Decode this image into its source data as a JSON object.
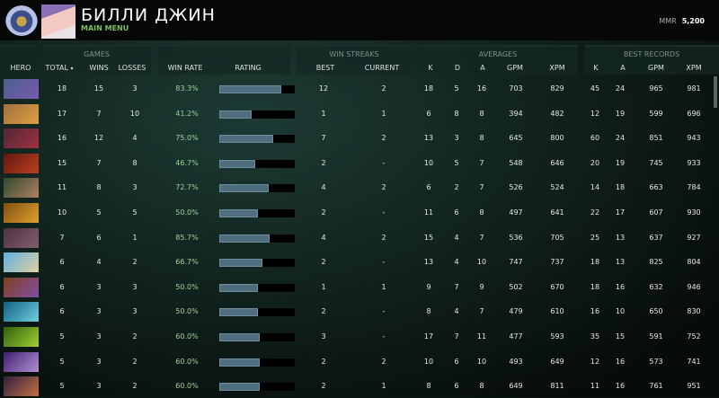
{
  "header": {
    "player_name": "БИЛЛИ ДЖИН",
    "subtitle": "MAIN MENU",
    "mmr_label": "MMR",
    "mmr_value": "5,200"
  },
  "groups": {
    "games": "GAMES",
    "win_streaks": "WIN STREAKS",
    "averages": "AVERAGES",
    "best_records": "BEST RECORDS"
  },
  "columns": {
    "hero": "HERO",
    "total": "TOTAL",
    "wins": "WINS",
    "losses": "LOSSES",
    "win_rate": "WIN RATE",
    "rating": "RATING",
    "best": "BEST",
    "current": "CURRENT",
    "k": "K",
    "d": "D",
    "a": "A",
    "gpm": "GPM",
    "xpm": "XPM",
    "best_k": "K",
    "best_a": "A",
    "best_gpm": "GPM",
    "best_xpm": "XPM"
  },
  "sort": {
    "column": "total",
    "direction": "descending"
  },
  "colors": {
    "win_rate": "#9fd49a",
    "rating_bar": "#4e6e80",
    "accent": "#7fbf5a"
  },
  "rows": [
    {
      "icon": [
        "#4a5f8a",
        "#7a5ab0"
      ],
      "total": "18",
      "wins": "15",
      "losses": "3",
      "win_rate": "83.3%",
      "rating": 82,
      "best": "12",
      "current": "2",
      "k": "18",
      "d": "5",
      "a": "16",
      "gpm": "703",
      "xpm": "829",
      "bk": "45",
      "ba": "24",
      "bgpm": "965",
      "bxpm": "981"
    },
    {
      "icon": [
        "#a07040",
        "#e0a040"
      ],
      "total": "17",
      "wins": "7",
      "losses": "10",
      "win_rate": "41.2%",
      "rating": 43,
      "best": "1",
      "current": "1",
      "k": "6",
      "d": "8",
      "a": "8",
      "gpm": "394",
      "xpm": "482",
      "bk": "12",
      "ba": "19",
      "bgpm": "599",
      "bxpm": "696"
    },
    {
      "icon": [
        "#502838",
        "#a03040"
      ],
      "total": "16",
      "wins": "12",
      "losses": "4",
      "win_rate": "75.0%",
      "rating": 72,
      "best": "7",
      "current": "2",
      "k": "13",
      "d": "3",
      "a": "8",
      "gpm": "645",
      "xpm": "800",
      "bk": "60",
      "ba": "24",
      "bgpm": "851",
      "bxpm": "943"
    },
    {
      "icon": [
        "#601810",
        "#c04020"
      ],
      "total": "15",
      "wins": "7",
      "losses": "8",
      "win_rate": "46.7%",
      "rating": 48,
      "best": "2",
      "current": "-",
      "k": "10",
      "d": "5",
      "a": "7",
      "gpm": "548",
      "xpm": "646",
      "bk": "20",
      "ba": "19",
      "bgpm": "745",
      "bxpm": "933"
    },
    {
      "icon": [
        "#304830",
        "#b08060"
      ],
      "total": "11",
      "wins": "8",
      "losses": "3",
      "win_rate": "72.7%",
      "rating": 65,
      "best": "4",
      "current": "2",
      "k": "6",
      "d": "2",
      "a": "7",
      "gpm": "526",
      "xpm": "524",
      "bk": "14",
      "ba": "18",
      "bgpm": "663",
      "bxpm": "784"
    },
    {
      "icon": [
        "#805010",
        "#e0a030"
      ],
      "total": "10",
      "wins": "5",
      "losses": "5",
      "win_rate": "50.0%",
      "rating": 51,
      "best": "2",
      "current": "-",
      "k": "11",
      "d": "6",
      "a": "8",
      "gpm": "497",
      "xpm": "641",
      "bk": "22",
      "ba": "17",
      "bgpm": "607",
      "bxpm": "930"
    },
    {
      "icon": [
        "#503040",
        "#806070"
      ],
      "total": "7",
      "wins": "6",
      "losses": "1",
      "win_rate": "85.7%",
      "rating": 67,
      "best": "4",
      "current": "2",
      "k": "15",
      "d": "4",
      "a": "7",
      "gpm": "536",
      "xpm": "705",
      "bk": "25",
      "ba": "13",
      "bgpm": "637",
      "bxpm": "927"
    },
    {
      "icon": [
        "#60b0e0",
        "#e0d0a0"
      ],
      "total": "6",
      "wins": "4",
      "losses": "2",
      "win_rate": "66.7%",
      "rating": 57,
      "best": "2",
      "current": "-",
      "k": "13",
      "d": "4",
      "a": "10",
      "gpm": "747",
      "xpm": "737",
      "bk": "18",
      "ba": "13",
      "bgpm": "825",
      "bxpm": "804"
    },
    {
      "icon": [
        "#804020",
        "#8050a0"
      ],
      "total": "6",
      "wins": "3",
      "losses": "3",
      "win_rate": "50.0%",
      "rating": 51,
      "best": "1",
      "current": "1",
      "k": "9",
      "d": "7",
      "a": "9",
      "gpm": "502",
      "xpm": "670",
      "bk": "18",
      "ba": "16",
      "bgpm": "632",
      "bxpm": "946"
    },
    {
      "icon": [
        "#106080",
        "#70d0e0"
      ],
      "total": "6",
      "wins": "3",
      "losses": "3",
      "win_rate": "50.0%",
      "rating": 51,
      "best": "2",
      "current": "-",
      "k": "8",
      "d": "4",
      "a": "7",
      "gpm": "479",
      "xpm": "610",
      "bk": "16",
      "ba": "10",
      "bgpm": "650",
      "bxpm": "830"
    },
    {
      "icon": [
        "#306010",
        "#a0d030"
      ],
      "total": "5",
      "wins": "3",
      "losses": "2",
      "win_rate": "60.0%",
      "rating": 54,
      "best": "3",
      "current": "-",
      "k": "17",
      "d": "7",
      "a": "11",
      "gpm": "477",
      "xpm": "593",
      "bk": "35",
      "ba": "15",
      "bgpm": "591",
      "bxpm": "752"
    },
    {
      "icon": [
        "#402070",
        "#b090d0"
      ],
      "total": "5",
      "wins": "3",
      "losses": "2",
      "win_rate": "60.0%",
      "rating": 54,
      "best": "2",
      "current": "2",
      "k": "10",
      "d": "6",
      "a": "10",
      "gpm": "493",
      "xpm": "649",
      "bk": "12",
      "ba": "16",
      "bgpm": "573",
      "bxpm": "741"
    },
    {
      "icon": [
        "#302040",
        "#c07040"
      ],
      "total": "5",
      "wins": "3",
      "losses": "2",
      "win_rate": "60.0%",
      "rating": 54,
      "best": "2",
      "current": "1",
      "k": "8",
      "d": "6",
      "a": "8",
      "gpm": "649",
      "xpm": "811",
      "bk": "11",
      "ba": "16",
      "bgpm": "761",
      "bxpm": "951"
    }
  ]
}
